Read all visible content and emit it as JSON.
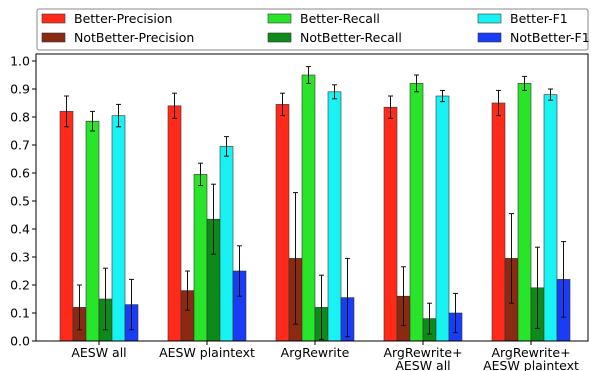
{
  "chart_data": {
    "type": "bar",
    "title": "",
    "xlabel": "",
    "ylabel": "",
    "ylim": [
      0.0,
      1.0
    ],
    "yticks": [
      "0.0",
      "0.1",
      "0.2",
      "0.3",
      "0.4",
      "0.5",
      "0.6",
      "0.7",
      "0.8",
      "0.9",
      "1.0"
    ],
    "grid": false,
    "legend_position": "top",
    "categories": [
      [
        "AESW all"
      ],
      [
        "AESW plaintext"
      ],
      [
        "ArgRewrite"
      ],
      [
        "ArgRewrite+",
        "AESW all"
      ],
      [
        "ArgRewrite+",
        "AESW plaintext"
      ]
    ],
    "series": [
      {
        "name": "Better-Precision",
        "color": "#ff2a1a",
        "values": [
          0.82,
          0.84,
          0.845,
          0.835,
          0.85
        ],
        "err": [
          0.055,
          0.045,
          0.04,
          0.04,
          0.045
        ]
      },
      {
        "name": "NotBetter-Precision",
        "color": "#8b2a12",
        "values": [
          0.12,
          0.18,
          0.295,
          0.16,
          0.295
        ],
        "err": [
          0.08,
          0.07,
          0.235,
          0.105,
          0.16
        ]
      },
      {
        "name": "Better-Recall",
        "color": "#29e52a",
        "values": [
          0.785,
          0.595,
          0.95,
          0.92,
          0.92
        ],
        "err": [
          0.035,
          0.04,
          0.03,
          0.03,
          0.025
        ]
      },
      {
        "name": "NotBetter-Recall",
        "color": "#0d8a1a",
        "values": [
          0.15,
          0.435,
          0.12,
          0.08,
          0.19
        ],
        "err": [
          0.11,
          0.125,
          0.115,
          0.055,
          0.145
        ]
      },
      {
        "name": "Better-F1",
        "color": "#19f2f2",
        "values": [
          0.805,
          0.695,
          0.89,
          0.875,
          0.88
        ],
        "err": [
          0.04,
          0.035,
          0.025,
          0.02,
          0.02
        ]
      },
      {
        "name": "NotBetter-F1",
        "color": "#1a3cf5",
        "values": [
          0.13,
          0.25,
          0.155,
          0.1,
          0.22
        ],
        "err": [
          0.09,
          0.09,
          0.14,
          0.07,
          0.135
        ]
      }
    ]
  }
}
